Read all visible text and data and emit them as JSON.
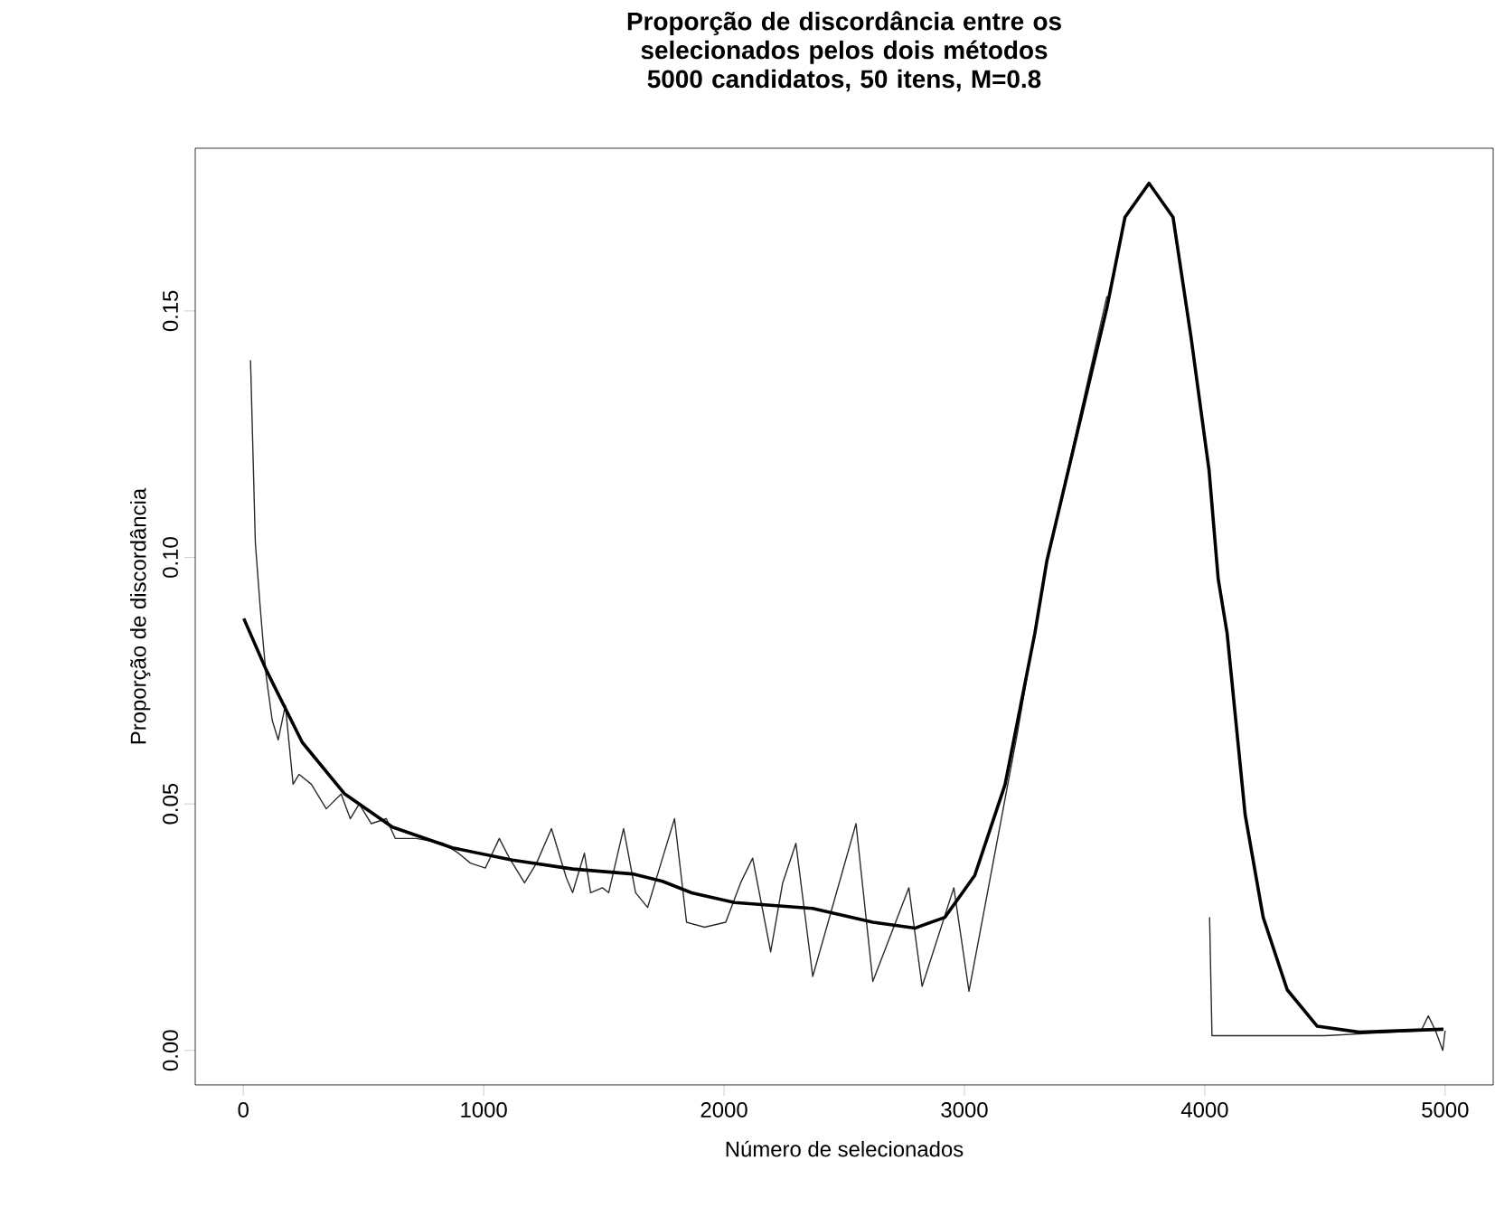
{
  "chart_data": {
    "type": "line",
    "title": "Proporção de discordância entre os selecionados pelos dois métodos",
    "subtitle": "5000 candidatos, 50 itens, M=0.8",
    "xlabel": "Número de selecionados",
    "ylabel": "Proporção de discordância",
    "xlim": [
      -200,
      5200
    ],
    "ylim": [
      -0.007,
      0.183
    ],
    "xticks": [
      0,
      1000,
      2000,
      3000,
      4000,
      5000
    ],
    "yticks": [
      {
        "value": 0,
        "label": "0.00"
      },
      {
        "value": 0.05,
        "label": "0.05"
      },
      {
        "value": 0.1,
        "label": "0.10"
      },
      {
        "value": 0.15,
        "label": "0.15"
      }
    ],
    "marker": "none",
    "line_style": "solid",
    "series": [
      {
        "color": "#2a2a2a",
        "x": [
          30,
          50,
          70,
          82,
          95,
          120,
          145,
          175,
          207,
          232,
          283,
          345,
          407,
          445,
          482,
          532,
          595,
          632,
          720,
          832,
          895,
          945,
          1007,
          1065,
          1107,
          1170,
          1220,
          1282,
          1344,
          1370,
          1419,
          1445,
          1494,
          1520,
          1582,
          1632,
          1682,
          1744,
          1794,
          1844,
          1919,
          2007,
          2069,
          2119,
          2194,
          2244,
          2299,
          2369,
          2549,
          2619,
          2769,
          2824,
          2956,
          3019,
          3219,
          3293,
          3343,
          3593,
          3850,
          4020,
          4030,
          4500,
          4900,
          4930,
          4960,
          4990,
          5000
        ],
        "values": [
          0.14,
          0.103,
          0.09,
          0.083,
          0.076,
          0.067,
          0.063,
          0.07,
          0.054,
          0.056,
          0.054,
          0.049,
          0.052,
          0.047,
          0.05,
          0.046,
          0.047,
          0.043,
          0.043,
          0.042,
          0.04,
          0.038,
          0.037,
          0.043,
          0.039,
          0.034,
          0.038,
          0.045,
          0.035,
          0.032,
          0.04,
          0.032,
          0.033,
          0.032,
          0.045,
          0.032,
          0.029,
          0.039,
          0.047,
          0.026,
          0.025,
          0.026,
          0.034,
          0.039,
          0.02,
          0.034,
          0.042,
          0.015,
          0.046,
          0.014,
          0.033,
          0.013,
          0.033,
          0.012,
          0.064,
          0.085,
          0.099,
          0.153,
          null,
          0.027,
          0.003,
          0.003,
          0.004,
          0.007,
          0.004,
          0.0,
          0.004
        ]
      },
      {
        "color": "#000000",
        "x": [
          2,
          95,
          245,
          420,
          620,
          870,
          1119,
          1370,
          1619,
          1744,
          1869,
          2044,
          2369,
          2619,
          2794,
          2919,
          3043,
          3169,
          3293,
          3343,
          3593,
          3668,
          3768,
          3868,
          3943,
          4018,
          4056,
          4093,
          4168,
          4243,
          4343,
          4468,
          4643,
          4993
        ],
        "values": [
          0.0876,
          0.0772,
          0.0625,
          0.0521,
          0.0453,
          0.0411,
          0.0386,
          0.0368,
          0.0358,
          0.0343,
          0.0319,
          0.03,
          0.0288,
          0.026,
          0.0248,
          0.027,
          0.0355,
          0.0539,
          0.0846,
          0.0993,
          0.1507,
          0.169,
          0.1759,
          0.169,
          0.1446,
          0.1176,
          0.0956,
          0.0846,
          0.0478,
          0.027,
          0.0123,
          0.0049,
          0.0037,
          0.0043
        ]
      }
    ]
  }
}
